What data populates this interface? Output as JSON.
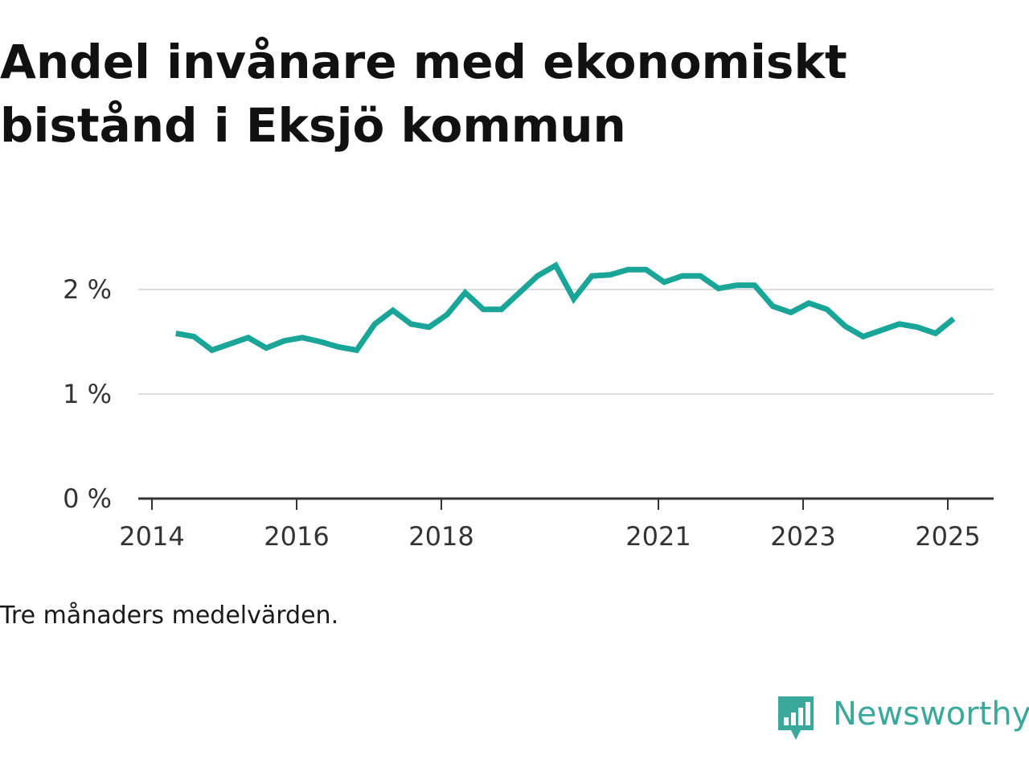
{
  "title": "Andel invånare med ekonomiskt bistånd i Eksjö kommun",
  "footnote": "Tre månaders medelvärden.",
  "brand": {
    "name": "Newsworthy",
    "logo_icon": "newsworthy-bar-chart-icon",
    "color": "#3aa99b"
  },
  "colors": {
    "line": "#19a598",
    "grid": "#dddddd",
    "axis": "#333333"
  },
  "chart_data": {
    "type": "line",
    "title": "Andel invånare med ekonomiskt bistånd i Eksjö kommun",
    "xlabel": "",
    "ylabel": "",
    "ylim": [
      0,
      2.4
    ],
    "xlim": [
      2014.0,
      2025.7
    ],
    "y_ticks": [
      {
        "value": 0,
        "label": "0 %"
      },
      {
        "value": 1,
        "label": "1 %"
      },
      {
        "value": 2,
        "label": "2 %"
      }
    ],
    "x_ticks": [
      {
        "value": 2014,
        "label": "2014"
      },
      {
        "value": 2016,
        "label": "2016"
      },
      {
        "value": 2018,
        "label": "2018"
      },
      {
        "value": 2021,
        "label": "2021"
      },
      {
        "value": 2023,
        "label": "2023"
      },
      {
        "value": 2025,
        "label": "2025"
      }
    ],
    "grid": true,
    "legend": "none",
    "series": [
      {
        "x": [
          2014.33,
          2014.58,
          2014.83,
          2015.08,
          2015.33,
          2015.58,
          2015.83,
          2016.08,
          2016.33,
          2016.58,
          2016.83,
          2017.08,
          2017.33,
          2017.58,
          2017.83,
          2018.08,
          2018.33,
          2018.58,
          2018.83,
          2019.08,
          2019.33,
          2019.58,
          2019.83,
          2020.08,
          2020.33,
          2020.58,
          2020.83,
          2021.08,
          2021.33,
          2021.58,
          2021.83,
          2022.08,
          2022.33,
          2022.58,
          2022.83,
          2023.08,
          2023.33,
          2023.58,
          2023.83,
          2024.08,
          2024.33,
          2024.58,
          2024.83,
          2025.08
        ],
        "values": [
          1.58,
          1.55,
          1.42,
          1.48,
          1.54,
          1.44,
          1.51,
          1.54,
          1.5,
          1.45,
          1.42,
          1.67,
          1.8,
          1.67,
          1.64,
          1.76,
          1.97,
          1.81,
          1.81,
          1.97,
          2.13,
          2.23,
          1.91,
          2.13,
          2.14,
          2.19,
          2.19,
          2.07,
          2.13,
          2.13,
          2.01,
          2.04,
          2.04,
          1.84,
          1.78,
          1.87,
          1.81,
          1.65,
          1.55,
          1.61,
          1.67,
          1.64,
          1.58,
          1.72
        ]
      }
    ]
  }
}
